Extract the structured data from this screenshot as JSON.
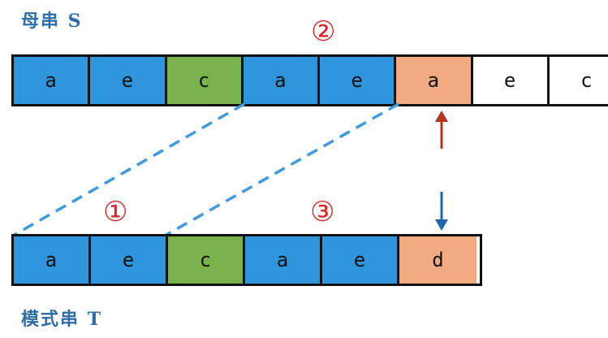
{
  "main_string": {
    "label": "母串 S",
    "cells": [
      {
        "char": "a",
        "color": "#2f95dc"
      },
      {
        "char": "e",
        "color": "#2f95dc"
      },
      {
        "char": "c",
        "color": "#7ab24e"
      },
      {
        "char": "a",
        "color": "#2f95dc"
      },
      {
        "char": "e",
        "color": "#2f95dc"
      },
      {
        "char": "a",
        "color": "#f2aa80"
      },
      {
        "char": "e",
        "color": "#ffffff"
      },
      {
        "char": "c",
        "color": "#ffffff"
      }
    ]
  },
  "pattern_string": {
    "label": "模式串 T",
    "cells": [
      {
        "char": "a",
        "color": "#2f95dc"
      },
      {
        "char": "e",
        "color": "#2f95dc"
      },
      {
        "char": "c",
        "color": "#7ab24e"
      },
      {
        "char": "a",
        "color": "#2f95dc"
      },
      {
        "char": "e",
        "color": "#2f95dc"
      },
      {
        "char": "d",
        "color": "#f2aa80"
      }
    ]
  },
  "markers": {
    "m1": "①",
    "m2": "②",
    "m3": "③"
  },
  "colors": {
    "label": "#2e6ea6",
    "marker": "#e52222",
    "dashed_line": "#3d9be0",
    "arrow_up": "#b0361c",
    "arrow_down": "#1f66b0"
  }
}
